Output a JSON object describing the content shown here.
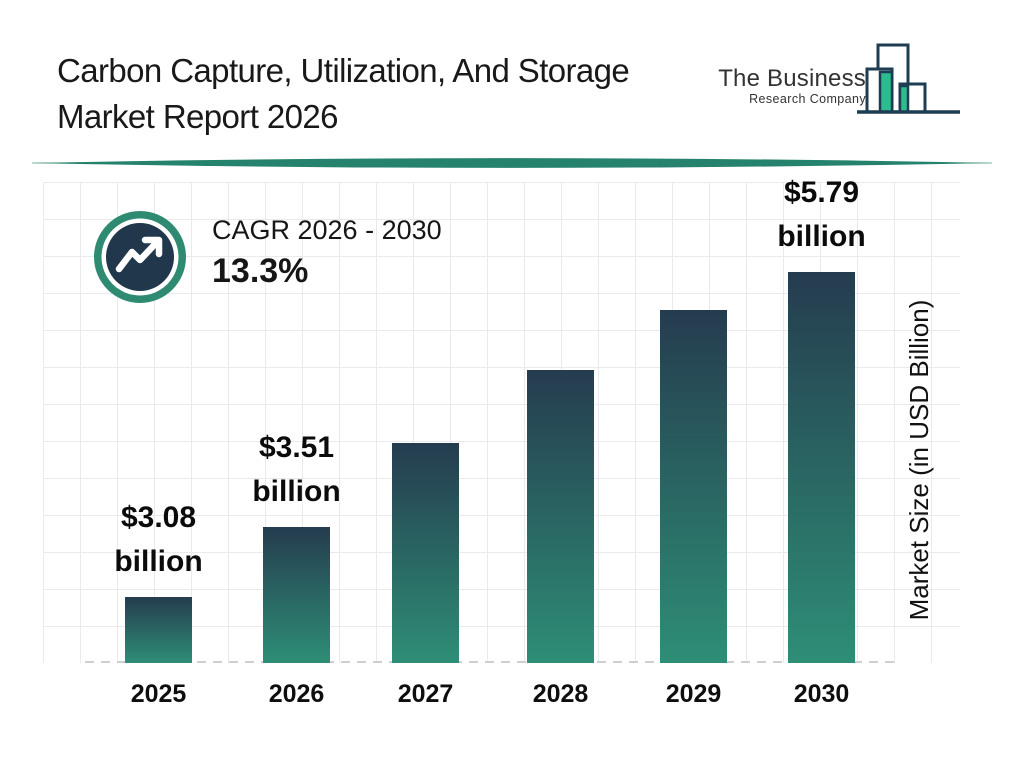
{
  "header": {
    "title_line1": "Carbon Capture, Utilization, And Storage",
    "title_line2": "Market Report 2026",
    "logo": {
      "line1": "The Business",
      "line2": "Research Company",
      "navy": "#1C3D52",
      "green": "#2CBC8D"
    },
    "divider_color": "#25826D"
  },
  "cagr": {
    "label": "CAGR 2026 - 2030",
    "value": "13.3%",
    "badge_ring_color": "#2E8B72",
    "badge_inner_color": "#21374B",
    "icon": "trending-up-icon"
  },
  "chart_data": {
    "type": "bar",
    "title": "Carbon Capture, Utilization, And Storage Market Report 2026",
    "categories": [
      "2025",
      "2026",
      "2027",
      "2028",
      "2029",
      "2030"
    ],
    "values": [
      3.08,
      3.51,
      3.98,
      4.51,
      5.11,
      5.79
    ],
    "unit": "USD Billion",
    "xlabel": "",
    "ylabel": "Market Size (in USD Billion)",
    "cagr_2026_2030_pct": 13.3,
    "data_labels": [
      {
        "category": "2025",
        "line1": "$3.08",
        "line2": "billion"
      },
      {
        "category": "2026",
        "line1": "$3.51",
        "line2": "billion"
      },
      {
        "category": "2030",
        "line1": "$5.79",
        "line2": "billion"
      }
    ],
    "grid": true,
    "legend": false,
    "baseline_style": "dashed",
    "colors": {
      "bar_top": "#253C4F",
      "bar_bottom": "#2E8E76",
      "grid": "#e9e9ee",
      "baseline": "#cfcfcf"
    }
  }
}
